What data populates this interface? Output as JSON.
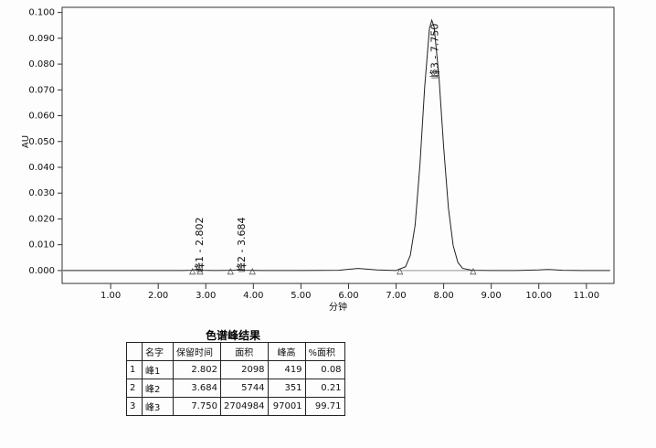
{
  "chart_data": {
    "type": "line",
    "ylabel": "AU",
    "xlabel": "分钟",
    "x": [
      0,
      0.5,
      1,
      1.5,
      2,
      2.5,
      2.7,
      2.8,
      2.9,
      3.2,
      3.6,
      3.68,
      3.8,
      4.2,
      5,
      5.8,
      6.2,
      6.6,
      7,
      7.2,
      7.3,
      7.4,
      7.5,
      7.6,
      7.7,
      7.75,
      7.8,
      7.9,
      8,
      8.1,
      8.2,
      8.3,
      8.4,
      8.6,
      9,
      9.5,
      10,
      10.2,
      10.5,
      11,
      11.5
    ],
    "series": [
      {
        "color": "#222222",
        "values": [
          0,
          0,
          0,
          0,
          0,
          0,
          0.0001,
          0.0004,
          0.0001,
          0,
          0.0001,
          0.00035,
          0.0001,
          0,
          0,
          0.0001,
          0.0008,
          0.0002,
          0,
          0.0015,
          0.0059,
          0.0177,
          0.0408,
          0.071,
          0.0937,
          0.097,
          0.0943,
          0.0752,
          0.0478,
          0.0242,
          0.0097,
          0.0031,
          0.0008,
          0.0001,
          0,
          0,
          0.0002,
          0.0004,
          0.0001,
          0,
          0
        ]
      }
    ],
    "integration_marks": [
      2.72,
      2.88,
      3.52,
      3.98,
      7.08,
      8.62
    ],
    "annotations": [
      {
        "text": "峰1 - 2.802",
        "x": 2.802
      },
      {
        "text": "峰2 - 3.684",
        "x": 3.684
      },
      {
        "text": "峰3 - 7.750",
        "x": 7.75
      }
    ],
    "xlim": [
      -0.02,
      11.58
    ],
    "ylim": [
      -0.005,
      0.102
    ],
    "xticks": [
      {
        "value": 1,
        "label": "1.00"
      },
      {
        "value": 2,
        "label": "2.00"
      },
      {
        "value": 3,
        "label": "3.00"
      },
      {
        "value": 4,
        "label": "4.00"
      },
      {
        "value": 5,
        "label": "5.00"
      },
      {
        "value": 6,
        "label": "6.00"
      },
      {
        "value": 7,
        "label": "7.00"
      },
      {
        "value": 8,
        "label": "8.00"
      },
      {
        "value": 9,
        "label": "9.00"
      },
      {
        "value": 10,
        "label": "10.00"
      },
      {
        "value": 11,
        "label": "11.00"
      }
    ],
    "yticks": [
      {
        "value": 0,
        "label": "0.000"
      },
      {
        "value": 0.01,
        "label": "0.010"
      },
      {
        "value": 0.02,
        "label": "0.020"
      },
      {
        "value": 0.03,
        "label": "0.030"
      },
      {
        "value": 0.04,
        "label": "0.040"
      },
      {
        "value": 0.05,
        "label": "0.050"
      },
      {
        "value": 0.06,
        "label": "0.060"
      },
      {
        "value": 0.07,
        "label": "0.070"
      },
      {
        "value": 0.08,
        "label": "0.080"
      },
      {
        "value": 0.09,
        "label": "0.090"
      },
      {
        "value": 0.1,
        "label": "0.100"
      }
    ]
  },
  "table": {
    "title": "色谱峰结果",
    "columns": [
      "名字",
      "保留时间",
      "面积",
      "峰高",
      "%面积"
    ],
    "rows": [
      [
        "1",
        "峰1",
        "2.802",
        "2098",
        "419",
        "0.08"
      ],
      [
        "2",
        "峰2",
        "3.684",
        "5744",
        "351",
        "0.21"
      ],
      [
        "3",
        "峰3",
        "7.750",
        "2704984",
        "97001",
        "99.71"
      ]
    ]
  }
}
